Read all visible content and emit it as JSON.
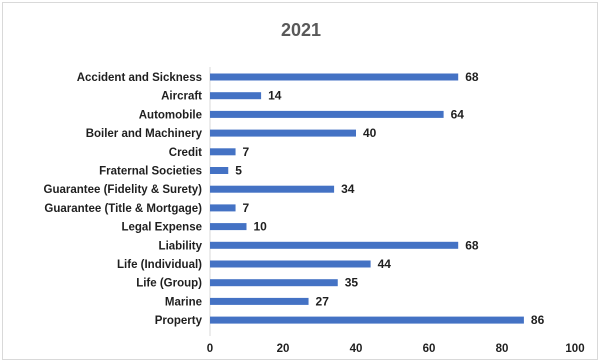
{
  "chart_data": {
    "type": "bar",
    "orientation": "horizontal",
    "title": "2021",
    "xlabel": "",
    "ylabel": "",
    "categories": [
      "Accident and Sickness",
      "Aircraft",
      "Automobile",
      "Boiler and Machinery",
      "Credit",
      "Fraternal Societies",
      "Guarantee (Fidelity & Surety)",
      "Guarantee (Title & Mortgage)",
      "Legal Expense",
      "Liability",
      "Life (Individual)",
      "Life (Group)",
      "Marine",
      "Property"
    ],
    "values": [
      68,
      14,
      64,
      40,
      7,
      5,
      34,
      7,
      10,
      68,
      44,
      35,
      27,
      86
    ],
    "xlim": [
      0,
      100
    ],
    "xticks": [
      0,
      20,
      40,
      60,
      80,
      100
    ],
    "grid": false,
    "legend": "none",
    "colors": {
      "bar": "#4472c4",
      "axis": "#d9d9d9",
      "text": "#1f1f1f",
      "title": "#595959"
    }
  }
}
